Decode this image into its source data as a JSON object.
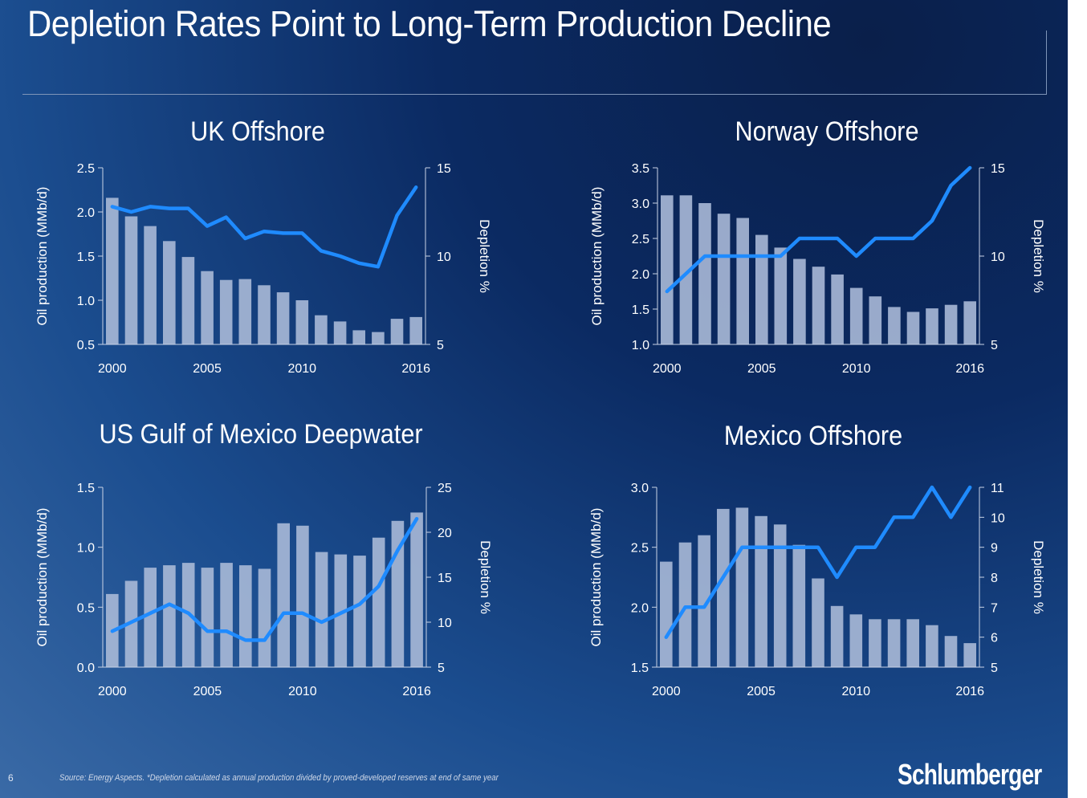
{
  "slide": {
    "title": "Depletion Rates Point to Long-Term Production Decline",
    "page_number": "6",
    "source_note": "Source: Energy Aspects. *Depletion calculated as annual production divided by proved-developed reserves at end of same year",
    "brand": "Schlumberger"
  },
  "colors": {
    "bars": "#a9b9d7",
    "line": "#1f8bff",
    "text": "#ffffff"
  },
  "chart_data": [
    {
      "type": "bar",
      "title": "UK Offshore",
      "xlabel": "",
      "ylabel": "Oil production (MMb/d)",
      "y2label": "Depletion %",
      "x": [
        2000,
        2001,
        2002,
        2003,
        2004,
        2005,
        2006,
        2007,
        2008,
        2009,
        2010,
        2011,
        2012,
        2013,
        2014,
        2015,
        2016
      ],
      "xticks": [
        2000,
        2005,
        2010,
        2016
      ],
      "ylim": [
        0.5,
        2.5
      ],
      "yticks": [
        0.5,
        1.0,
        1.5,
        2.0,
        2.5
      ],
      "y2lim": [
        5,
        15
      ],
      "y2ticks": [
        5,
        10,
        15
      ],
      "series": [
        {
          "name": "Oil production (MMb/d)",
          "type": "bar",
          "axis": "left",
          "values": [
            2.16,
            1.95,
            1.84,
            1.67,
            1.49,
            1.33,
            1.23,
            1.24,
            1.17,
            1.09,
            1.0,
            0.83,
            0.76,
            0.66,
            0.64,
            0.79,
            0.81
          ]
        },
        {
          "name": "Depletion %",
          "type": "line",
          "axis": "right",
          "values": [
            12.8,
            12.5,
            12.8,
            12.7,
            12.7,
            11.7,
            12.2,
            11.0,
            11.4,
            11.3,
            11.3,
            10.3,
            10.0,
            9.6,
            9.4,
            12.3,
            13.9
          ]
        }
      ],
      "grid": false,
      "legend": "none"
    },
    {
      "type": "bar",
      "title": "Norway Offshore",
      "xlabel": "",
      "ylabel": "Oil production (MMb/d)",
      "y2label": "Depletion %",
      "x": [
        2000,
        2001,
        2002,
        2003,
        2004,
        2005,
        2006,
        2007,
        2008,
        2009,
        2010,
        2011,
        2012,
        2013,
        2014,
        2015,
        2016
      ],
      "xticks": [
        2000,
        2005,
        2010,
        2016
      ],
      "ylim": [
        1.0,
        3.5
      ],
      "yticks": [
        1.0,
        1.5,
        2.0,
        2.5,
        3.0,
        3.5
      ],
      "y2lim": [
        5,
        15
      ],
      "y2ticks": [
        5,
        10,
        15
      ],
      "series": [
        {
          "name": "Oil production (MMb/d)",
          "type": "bar",
          "axis": "left",
          "values": [
            3.11,
            3.11,
            3.0,
            2.85,
            2.79,
            2.55,
            2.37,
            2.21,
            2.1,
            1.99,
            1.8,
            1.68,
            1.53,
            1.46,
            1.51,
            1.56,
            1.61
          ]
        },
        {
          "name": "Depletion %",
          "type": "line",
          "axis": "right",
          "values": [
            8.0,
            9.0,
            10.0,
            10.0,
            10.0,
            10.0,
            10.0,
            11.0,
            11.0,
            11.0,
            10.0,
            11.0,
            11.0,
            11.0,
            12.0,
            14.0,
            15.0
          ]
        }
      ],
      "grid": false,
      "legend": "none"
    },
    {
      "type": "bar",
      "title": "US Gulf of Mexico Deepwater",
      "xlabel": "",
      "ylabel": "Oil production (MMb/d)",
      "y2label": "Depletion %",
      "x": [
        2000,
        2001,
        2002,
        2003,
        2004,
        2005,
        2006,
        2007,
        2008,
        2009,
        2010,
        2011,
        2012,
        2013,
        2014,
        2015,
        2016
      ],
      "xticks": [
        2000,
        2005,
        2010,
        2016
      ],
      "ylim": [
        0.0,
        1.5
      ],
      "yticks": [
        0.0,
        0.5,
        1.0,
        1.5
      ],
      "y2lim": [
        5,
        25
      ],
      "y2ticks": [
        5,
        10,
        15,
        20,
        25
      ],
      "series": [
        {
          "name": "Oil production (MMb/d)",
          "type": "bar",
          "axis": "left",
          "values": [
            0.61,
            0.72,
            0.83,
            0.85,
            0.87,
            0.83,
            0.87,
            0.85,
            0.82,
            1.2,
            1.18,
            0.96,
            0.94,
            0.93,
            1.08,
            1.22,
            1.29
          ]
        },
        {
          "name": "Depletion %",
          "type": "line",
          "axis": "right",
          "values": [
            9.0,
            10.0,
            11.0,
            12.0,
            11.0,
            9.0,
            9.0,
            8.0,
            8.0,
            11.0,
            11.0,
            10.0,
            11.0,
            12.0,
            14.0,
            18.0,
            21.5
          ]
        }
      ],
      "grid": false,
      "legend": "none"
    },
    {
      "type": "bar",
      "title": "Mexico Offshore",
      "xlabel": "",
      "ylabel": "Oil production (MMb/d)",
      "y2label": "Depletion %",
      "x": [
        2000,
        2001,
        2002,
        2003,
        2004,
        2005,
        2006,
        2007,
        2008,
        2009,
        2010,
        2011,
        2012,
        2013,
        2014,
        2015,
        2016
      ],
      "xticks": [
        2000,
        2005,
        2010,
        2016
      ],
      "ylim": [
        1.5,
        3.0
      ],
      "yticks": [
        1.5,
        2.0,
        2.5,
        3.0
      ],
      "y2lim": [
        5,
        11
      ],
      "y2ticks": [
        5,
        6,
        7,
        8,
        9,
        10,
        11
      ],
      "series": [
        {
          "name": "Oil production (MMb/d)",
          "type": "bar",
          "axis": "left",
          "values": [
            2.38,
            2.54,
            2.6,
            2.82,
            2.83,
            2.76,
            2.69,
            2.52,
            2.24,
            2.01,
            1.94,
            1.9,
            1.9,
            1.9,
            1.85,
            1.76,
            1.7
          ]
        },
        {
          "name": "Depletion %",
          "type": "line",
          "axis": "right",
          "values": [
            6.0,
            7.0,
            7.0,
            8.0,
            9.0,
            9.0,
            9.0,
            9.0,
            9.0,
            8.0,
            9.0,
            9.0,
            10.0,
            10.0,
            11.0,
            10.0,
            11.0
          ]
        }
      ],
      "grid": false,
      "legend": "none"
    }
  ]
}
